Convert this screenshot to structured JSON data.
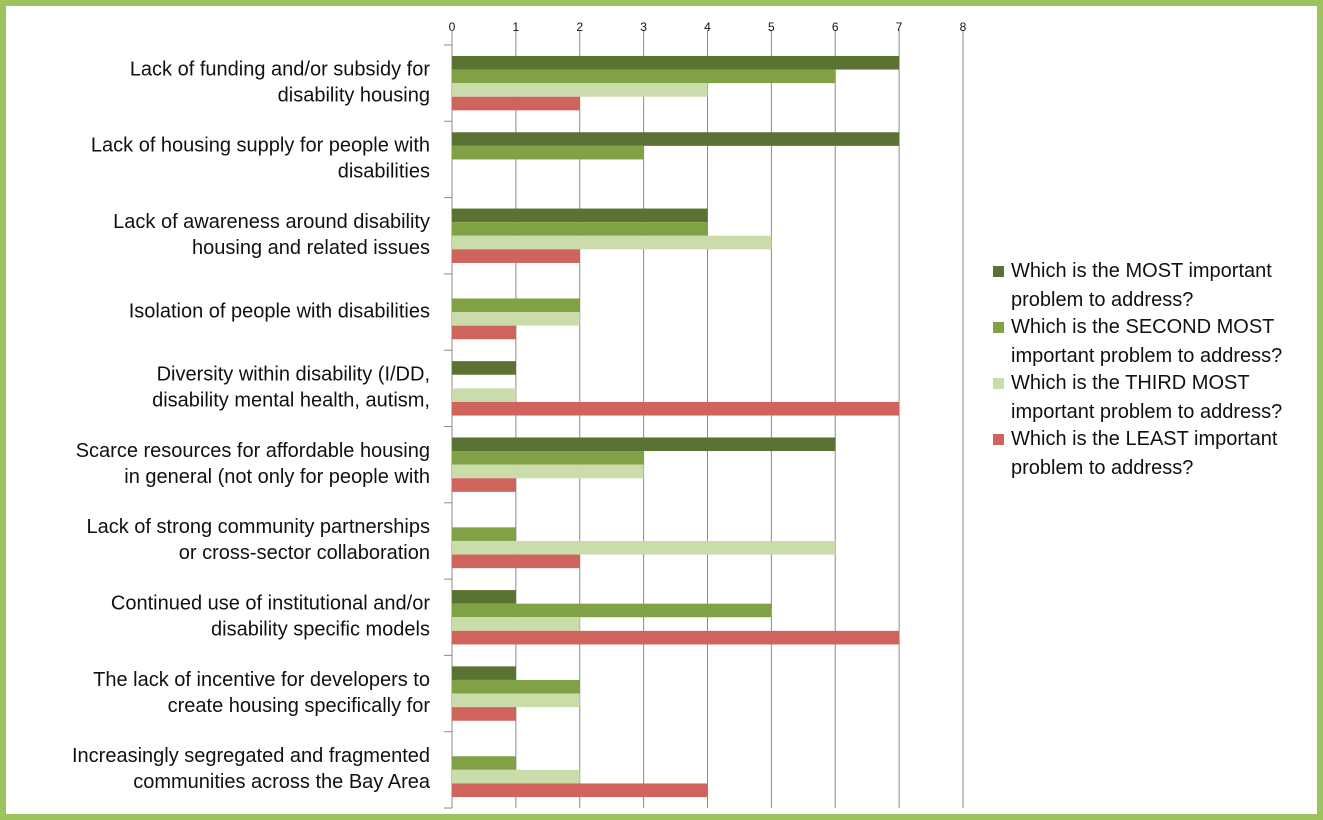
{
  "chart_data": {
    "type": "bar",
    "orientation": "horizontal",
    "categories": [
      [
        "Lack of funding and/or subsidy for",
        "disability housing"
      ],
      [
        "Lack of housing supply for people with",
        "disabilities"
      ],
      [
        "Lack of awareness around disability",
        "housing and related issues"
      ],
      [
        "Isolation of people with disabilities"
      ],
      [
        "Diversity within disability (I/DD,",
        "disability mental health, autism,"
      ],
      [
        "Scarce resources for affordable housing",
        "in general (not only for people with"
      ],
      [
        "Lack of strong community partnerships",
        "or cross-sector collaboration"
      ],
      [
        "Continued use of institutional and/or",
        "disability specific models"
      ],
      [
        "The lack of incentive for developers to",
        "create housing specifically for"
      ],
      [
        "Increasingly segregated and fragmented",
        "communities across the Bay Area"
      ]
    ],
    "series": [
      {
        "name": "Which is the MOST important problem to address?",
        "color": "#5b7332",
        "values": [
          7,
          7,
          4,
          0,
          1,
          6,
          0,
          1,
          1,
          0
        ]
      },
      {
        "name": "Which is the SECOND MOST important problem to address?",
        "color": "#80a146",
        "values": [
          6,
          3,
          4,
          2,
          0,
          3,
          1,
          5,
          2,
          1
        ]
      },
      {
        "name": "Which is the THIRD MOST important problem to address?",
        "color": "#c9dca9",
        "values": [
          4,
          0,
          5,
          2,
          1,
          3,
          6,
          2,
          2,
          2
        ]
      },
      {
        "name": "Which is the LEAST important problem to address?",
        "color": "#d0635b",
        "values": [
          2,
          0,
          2,
          1,
          7,
          1,
          2,
          7,
          1,
          4
        ]
      }
    ],
    "xlim": [
      0,
      8
    ],
    "xticks": [
      0,
      1,
      2,
      3,
      4,
      5,
      6,
      7,
      8
    ],
    "grid": true,
    "legend": "right"
  }
}
